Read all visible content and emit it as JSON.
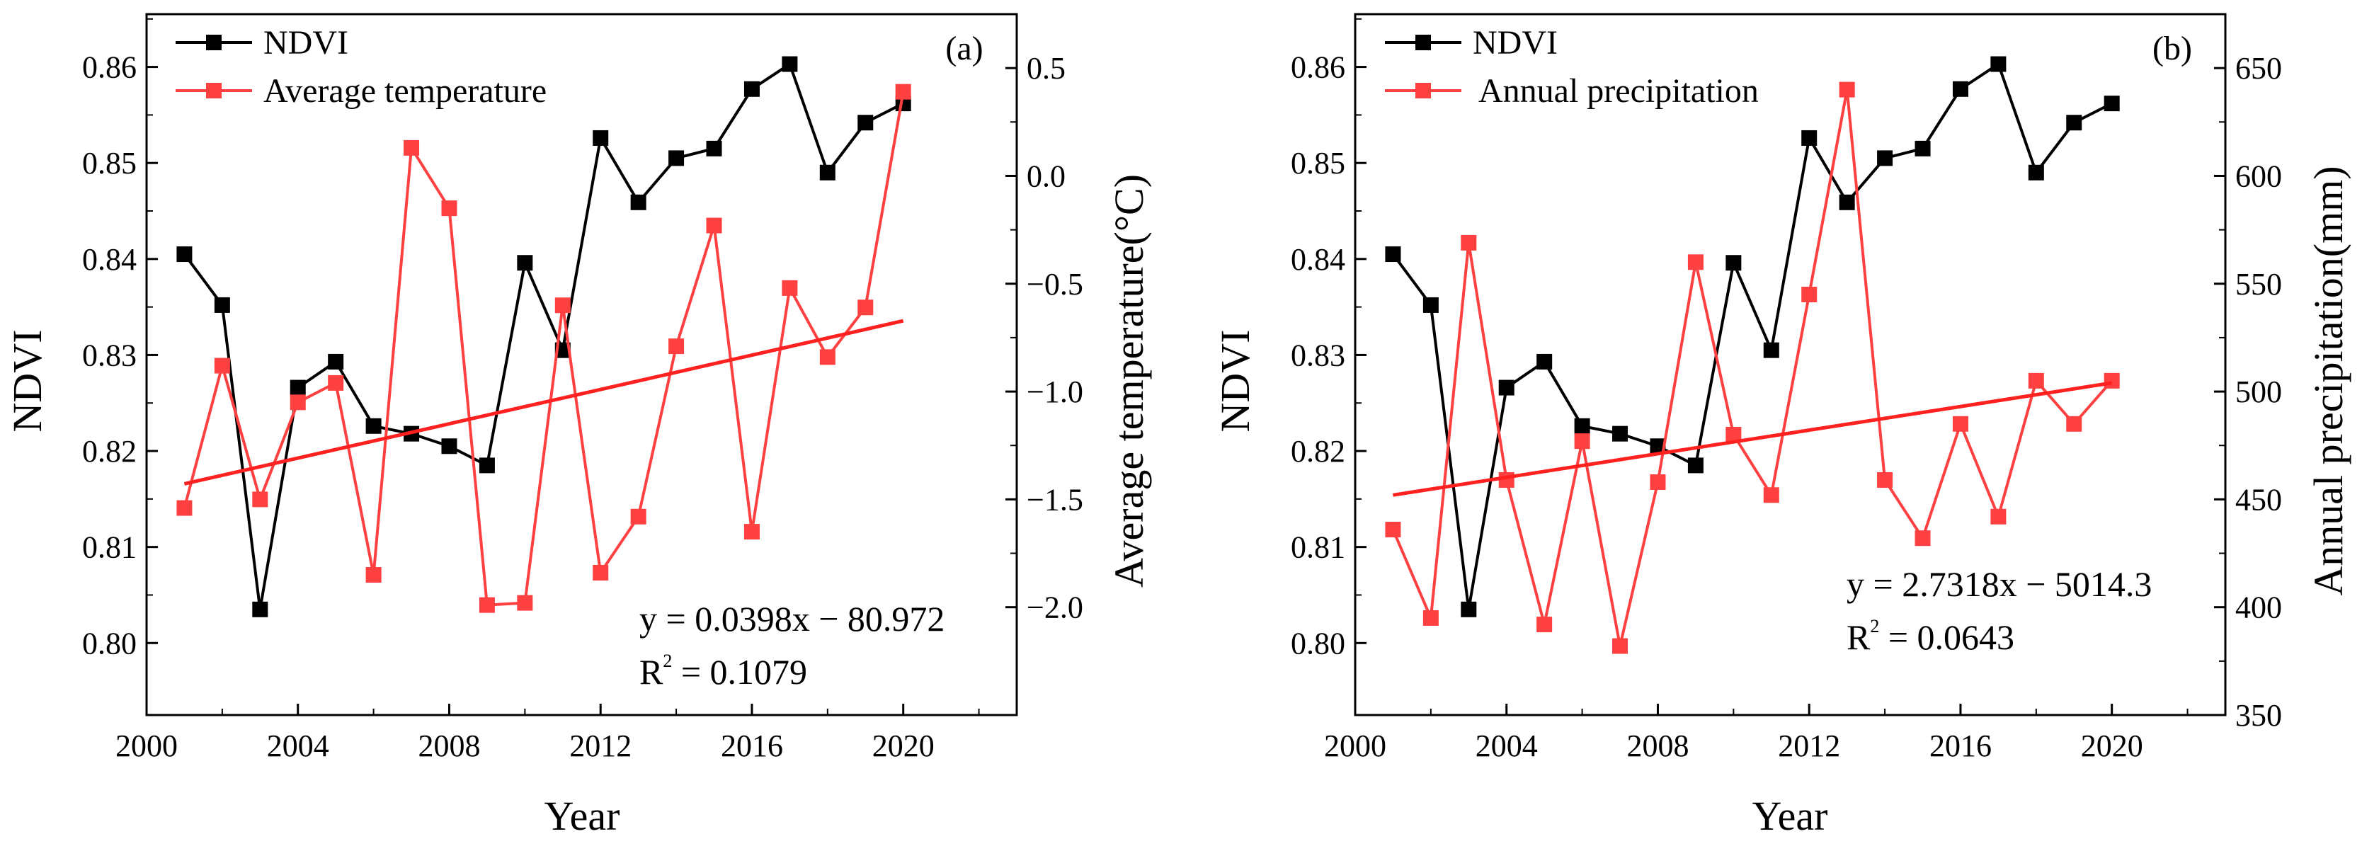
{
  "chart_data": [
    {
      "type": "line",
      "panel_label": "(a)",
      "xlabel": "Year",
      "ylabel_left": "NDVI",
      "ylabel_right": "Average temperature(°C)",
      "xlim": [
        2000,
        2023
      ],
      "ylim_left": [
        0.7925,
        0.8655
      ],
      "ylim_right": [
        -2.5,
        0.75
      ],
      "x_ticks": [
        2000,
        2004,
        2008,
        2012,
        2016,
        2020
      ],
      "x_tick_labels": [
        "2000",
        "2004",
        "2008",
        "2012",
        "2016",
        "2020"
      ],
      "y_left_ticks": [
        0.8,
        0.81,
        0.82,
        0.83,
        0.84,
        0.85,
        0.86
      ],
      "y_left_tick_labels": [
        "0.80",
        "0.81",
        "0.82",
        "0.83",
        "0.84",
        "0.85",
        "0.86"
      ],
      "y_right_ticks": [
        -2.0,
        -1.5,
        -1.0,
        -0.5,
        0.0,
        0.5
      ],
      "y_right_tick_labels": [
        "−2.0",
        "−1.5",
        "−1.0",
        "−0.5",
        "0.0",
        "0.5"
      ],
      "series": [
        {
          "name": "NDVI",
          "axis": "left",
          "color": "#000000",
          "x": [
            2001,
            2002,
            2003,
            2004,
            2005,
            2006,
            2007,
            2008,
            2009,
            2010,
            2011,
            2012,
            2013,
            2014,
            2015,
            2016,
            2017,
            2018,
            2019,
            2020
          ],
          "values": [
            0.8405,
            0.8352,
            0.8035,
            0.8266,
            0.8293,
            0.8226,
            0.8218,
            0.8205,
            0.8185,
            0.8396,
            0.8305,
            0.8526,
            0.8459,
            0.8505,
            0.8515,
            0.8577,
            0.8603,
            0.849,
            0.8542,
            0.8562
          ]
        },
        {
          "name": "Average temperature",
          "axis": "right",
          "color": "#ff4040",
          "x": [
            2001,
            2002,
            2003,
            2004,
            2005,
            2006,
            2007,
            2008,
            2009,
            2010,
            2011,
            2012,
            2013,
            2014,
            2015,
            2016,
            2017,
            2018,
            2019,
            2020
          ],
          "values": [
            -1.54,
            -0.88,
            -1.5,
            -1.05,
            -0.96,
            -1.85,
            0.13,
            -0.15,
            -1.99,
            -1.98,
            -0.6,
            -1.84,
            -1.58,
            -0.79,
            -0.23,
            -1.65,
            -0.52,
            -0.84,
            -0.61,
            0.39
          ]
        }
      ],
      "trendline": {
        "axis": "right",
        "color": "#ff2020",
        "x": [
          2001,
          2020
        ],
        "values": [
          -1.428,
          -0.672
        ],
        "equation": "y = 0.0398x − 80.972",
        "r2_prefix": "R",
        "r2_sup": "2",
        "r2_value": " = 0.1079"
      }
    },
    {
      "type": "line",
      "panel_label": "(b)",
      "xlabel": "Year",
      "ylabel_left": "NDVI",
      "ylabel_right": "Annual precipitation(mm)",
      "xlim": [
        2000,
        2023
      ],
      "ylim_left": [
        0.7925,
        0.8655
      ],
      "ylim_right": [
        350,
        675
      ],
      "x_ticks": [
        2000,
        2004,
        2008,
        2012,
        2016,
        2020
      ],
      "x_tick_labels": [
        "2000",
        "2004",
        "2008",
        "2012",
        "2016",
        "2020"
      ],
      "y_left_ticks": [
        0.8,
        0.81,
        0.82,
        0.83,
        0.84,
        0.85,
        0.86
      ],
      "y_left_tick_labels": [
        "0.80",
        "0.81",
        "0.82",
        "0.83",
        "0.84",
        "0.85",
        "0.86"
      ],
      "y_right_ticks": [
        350,
        400,
        450,
        500,
        550,
        600,
        650
      ],
      "y_right_tick_labels": [
        "350",
        "400",
        "450",
        "500",
        "550",
        "600",
        "650"
      ],
      "series": [
        {
          "name": "NDVI",
          "axis": "left",
          "color": "#000000",
          "x": [
            2001,
            2002,
            2003,
            2004,
            2005,
            2006,
            2007,
            2008,
            2009,
            2010,
            2011,
            2012,
            2013,
            2014,
            2015,
            2016,
            2017,
            2018,
            2019,
            2020
          ],
          "values": [
            0.8405,
            0.8352,
            0.8035,
            0.8266,
            0.8293,
            0.8226,
            0.8218,
            0.8205,
            0.8185,
            0.8396,
            0.8305,
            0.8526,
            0.8459,
            0.8505,
            0.8515,
            0.8577,
            0.8603,
            0.849,
            0.8542,
            0.8562
          ]
        },
        {
          "name": "Annual precipitation",
          "axis": "right",
          "color": "#ff4040",
          "x": [
            2001,
            2002,
            2003,
            2004,
            2005,
            2006,
            2007,
            2008,
            2009,
            2010,
            2011,
            2012,
            2013,
            2014,
            2015,
            2016,
            2017,
            2018,
            2019,
            2020
          ],
          "values": [
            436,
            395,
            569,
            459,
            392,
            477,
            382,
            458,
            560,
            480,
            452,
            545,
            640,
            459,
            432,
            485,
            442,
            505,
            485,
            505
          ]
        }
      ],
      "trendline": {
        "axis": "right",
        "color": "#ff2020",
        "x": [
          2001,
          2020
        ],
        "values": [
          452,
          504
        ],
        "equation": "y = 2.7318x − 5014.3",
        "r2_prefix": "R",
        "r2_sup": "2",
        "r2_value": " = 0.0643"
      }
    }
  ]
}
